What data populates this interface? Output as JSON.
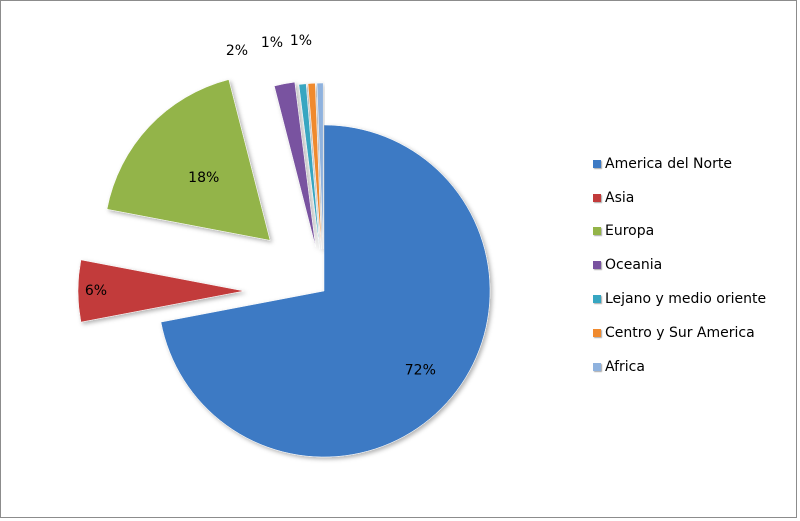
{
  "chart_data": {
    "type": "pie",
    "title": "",
    "exploded": true,
    "legend_position": "right",
    "slices": [
      {
        "label": "America del Norte",
        "value": 72,
        "value_label": "72%",
        "color": "#3d7ac4"
      },
      {
        "label": "Asia",
        "value": 6,
        "value_label": "6%",
        "color": "#c23b3b"
      },
      {
        "label": "Europa",
        "value": 18,
        "value_label": "18%",
        "color": "#93b448"
      },
      {
        "label": "Oceania",
        "value": 2,
        "value_label": "2%",
        "color": "#7953a0"
      },
      {
        "label": "Lejano y medio oriente",
        "value": 0.7,
        "value_label": "1%",
        "color": "#37a6c1"
      },
      {
        "label": "Centro y Sur America",
        "value": 0.7,
        "value_label": "1%",
        "color": "#f08a2e"
      },
      {
        "label": "Africa",
        "value": 0.6,
        "value_label": "",
        "color": "#8fb2de"
      }
    ]
  }
}
